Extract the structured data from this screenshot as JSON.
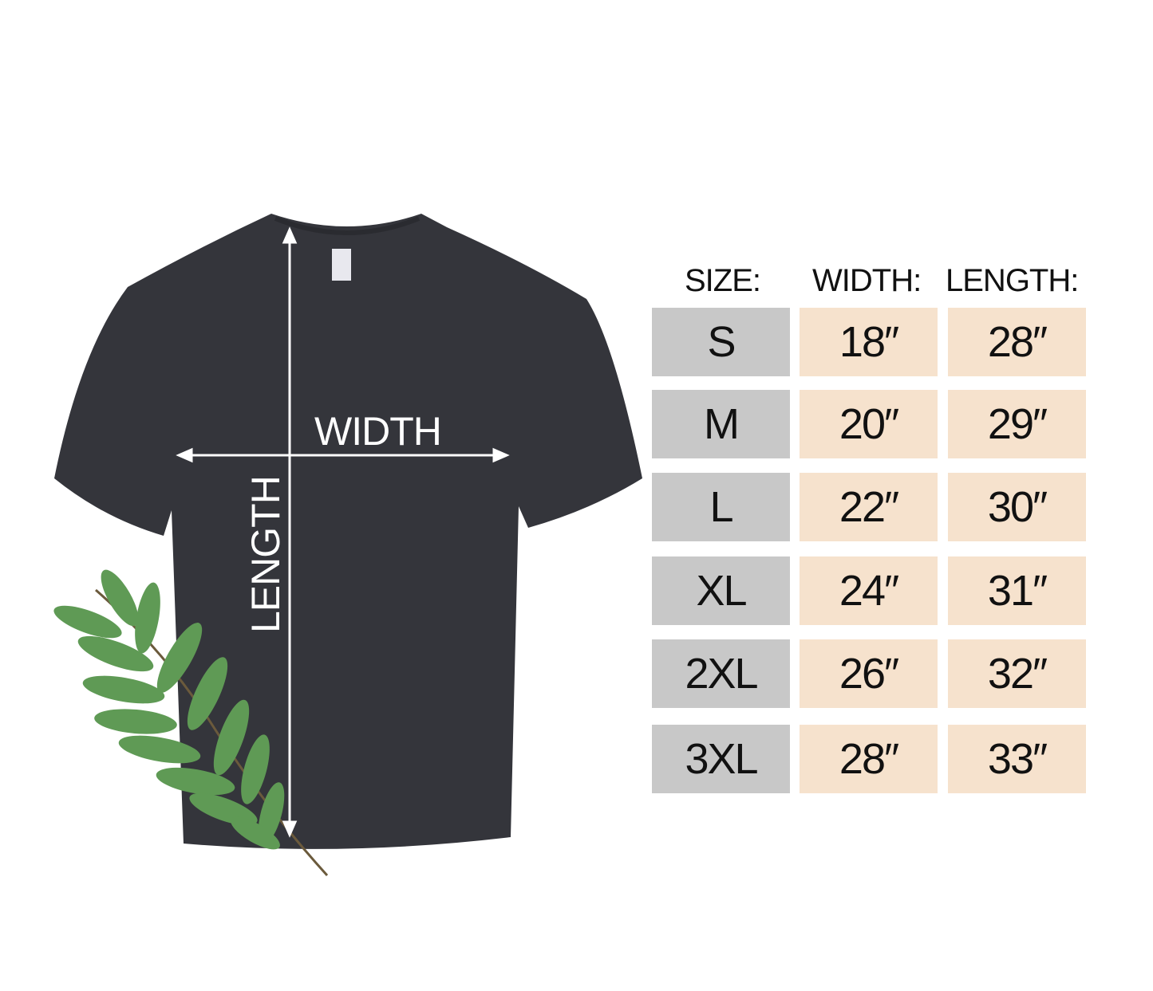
{
  "diagram": {
    "width_label": "WIDTH",
    "length_label": "LENGTH",
    "shirt_color": "#34353b"
  },
  "table": {
    "headers": [
      "SIZE:",
      "WIDTH:",
      "LENGTH:"
    ],
    "rows": [
      {
        "size": "S",
        "width": "18″",
        "length": "28″"
      },
      {
        "size": "M",
        "width": "20″",
        "length": "29″"
      },
      {
        "size": "L",
        "width": "22″",
        "length": "30″"
      },
      {
        "size": "XL",
        "width": "24″",
        "length": "31″"
      },
      {
        "size": "2XL",
        "width": "26″",
        "length": "32″"
      },
      {
        "size": "3XL",
        "width": "28″",
        "length": "33″"
      }
    ],
    "size_cell_color": "#c8c8c8",
    "measure_cell_color": "#f6e2cd"
  }
}
